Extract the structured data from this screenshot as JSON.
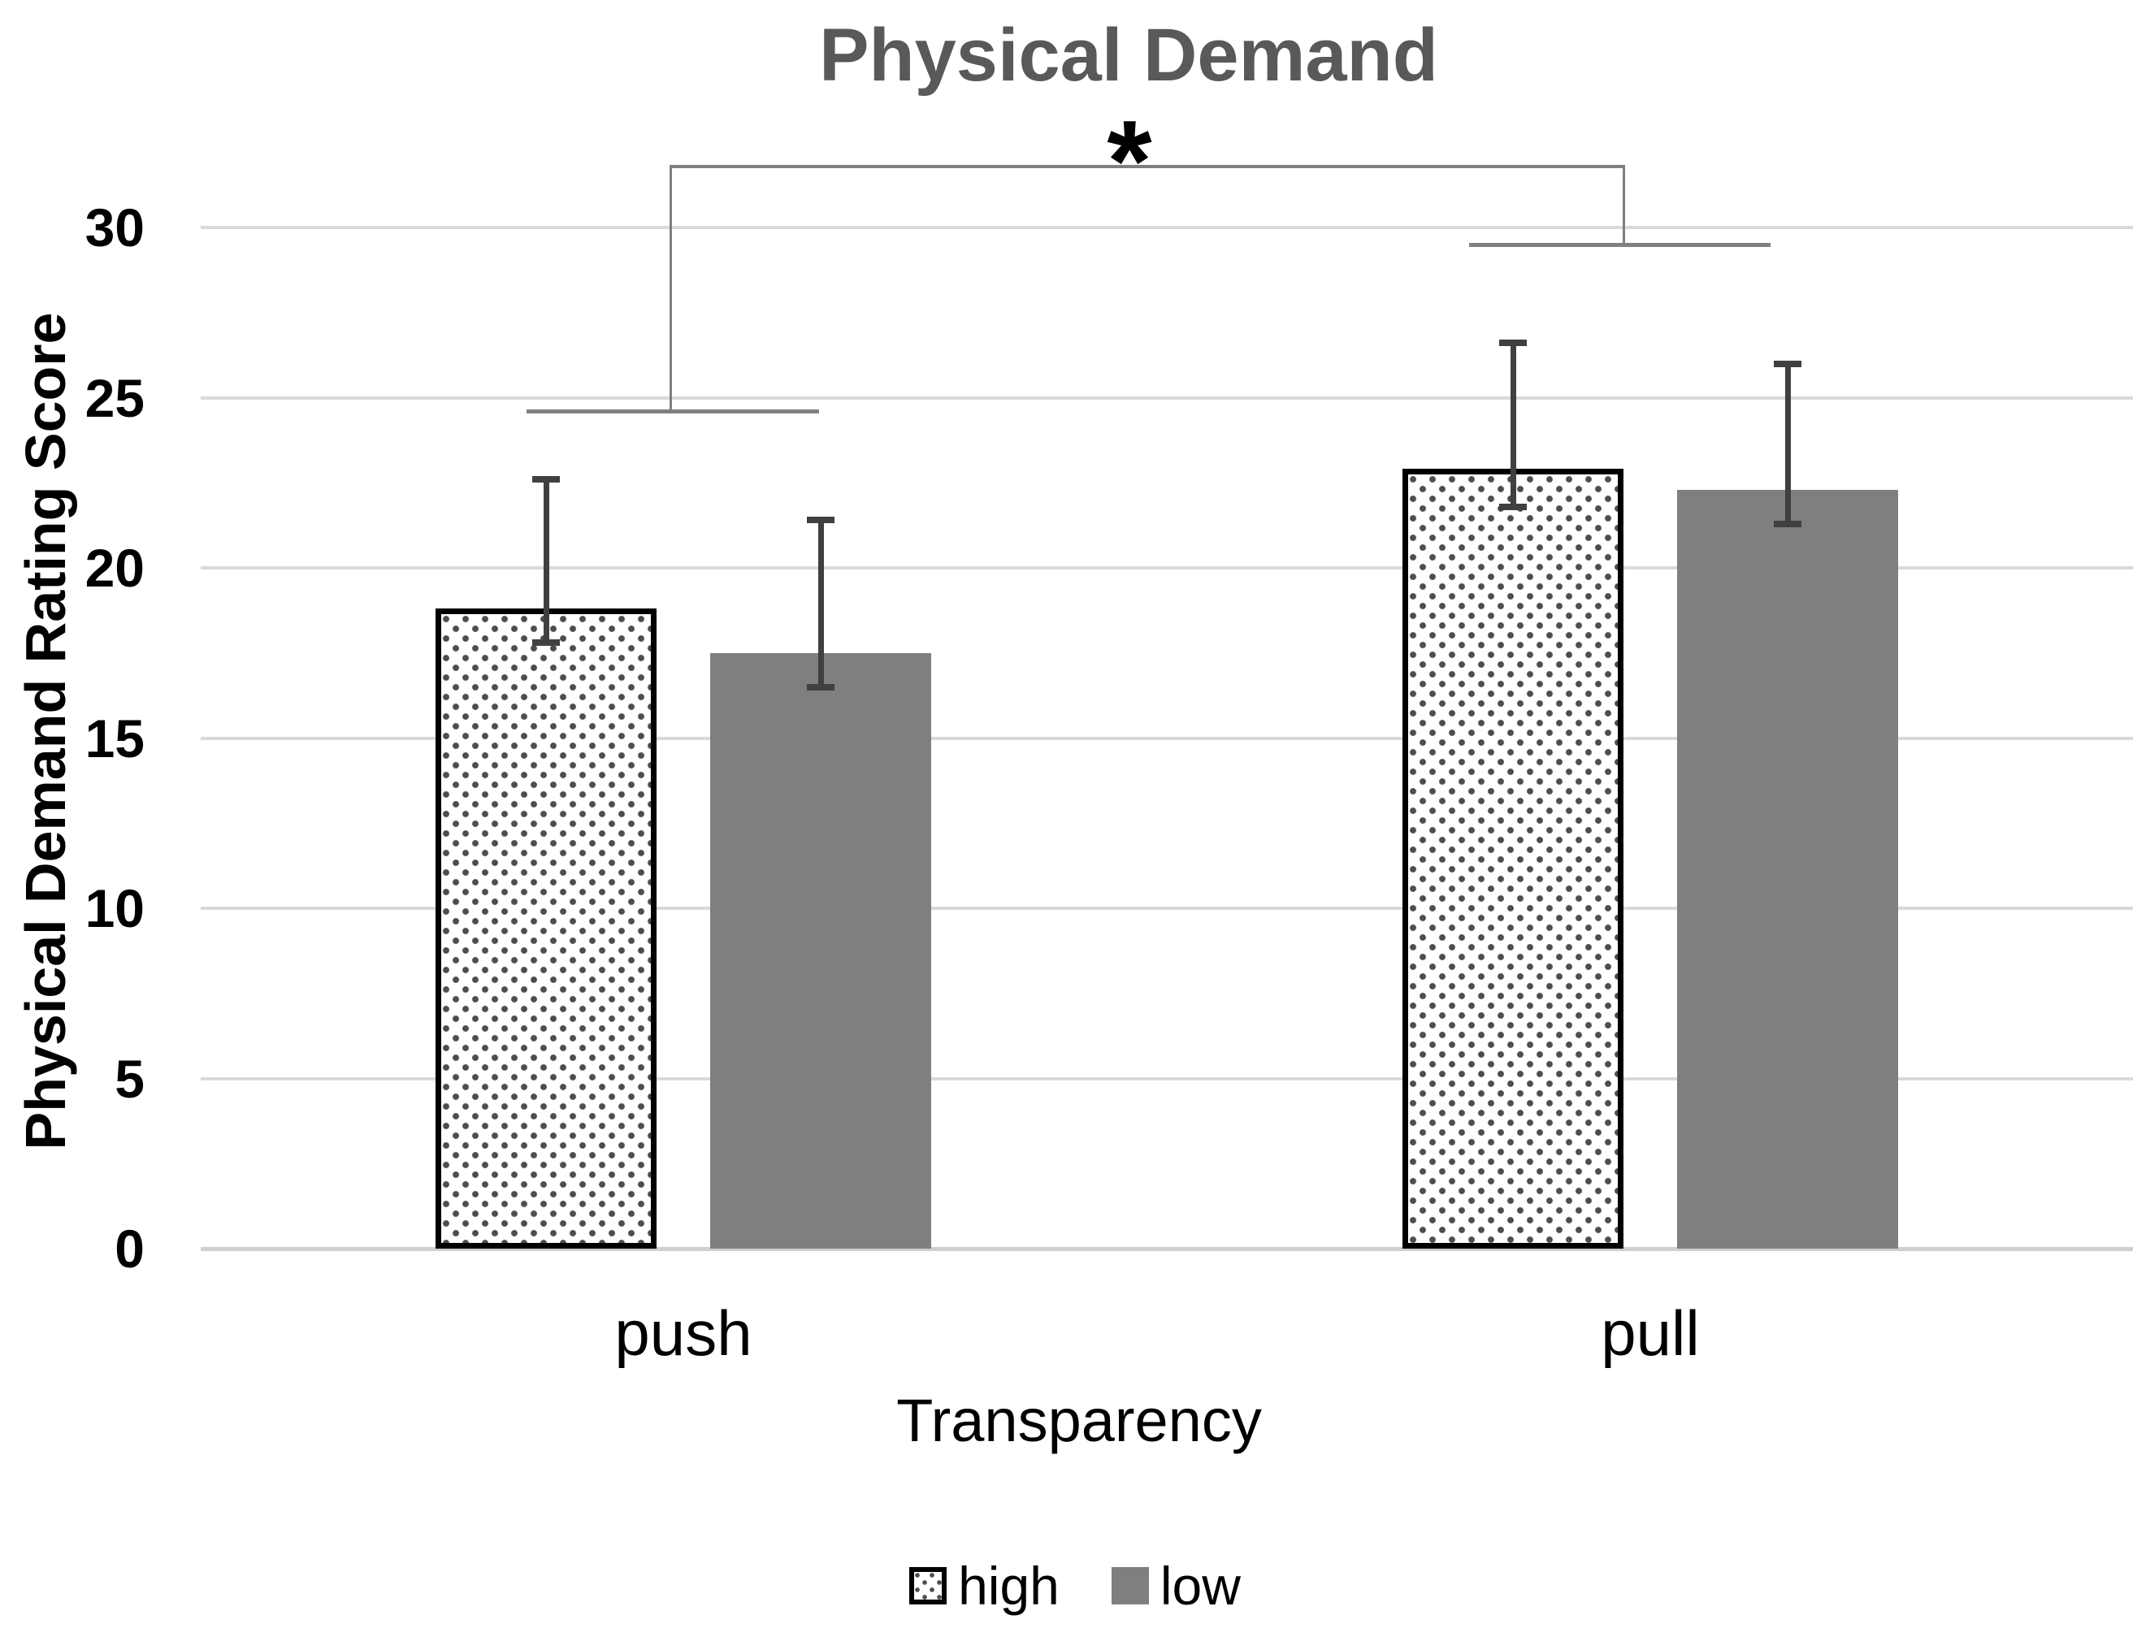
{
  "chart_data": {
    "type": "bar",
    "title": "Physical Demand",
    "xlabel": "Transparency",
    "ylabel": "Physical Demand Rating Score",
    "categories": [
      "push",
      "pull"
    ],
    "series": [
      {
        "name": "high",
        "style": "white-dotted-pattern-black-border",
        "values": [
          18.8,
          22.9
        ],
        "error_upper": [
          22.6,
          26.6
        ],
        "error_lower": [
          17.8,
          21.8
        ]
      },
      {
        "name": "low",
        "style": "solid-gray",
        "fill": "#7f7f7f",
        "values": [
          17.5,
          22.3
        ],
        "error_upper": [
          21.4,
          26.0
        ],
        "error_lower": [
          16.5,
          21.3
        ]
      }
    ],
    "ylim": [
      0,
      30
    ],
    "yticks": [
      0,
      5,
      10,
      15,
      20,
      25,
      30
    ],
    "grid": true,
    "legend_position": "bottom",
    "significance_bracket": {
      "symbol": "*",
      "connects": [
        "push",
        "pull"
      ],
      "top_y_value": 31.8,
      "push_whisker_y_value": 24.6,
      "pull_whisker_y_value": 29.5
    },
    "colors": {
      "title": "#595959",
      "gridline": "#d9d9d9",
      "bar_low": "#7f7f7f",
      "dot_pattern": "#4d4d4d",
      "error_bar": "#404040",
      "bracket": "#808080"
    }
  }
}
